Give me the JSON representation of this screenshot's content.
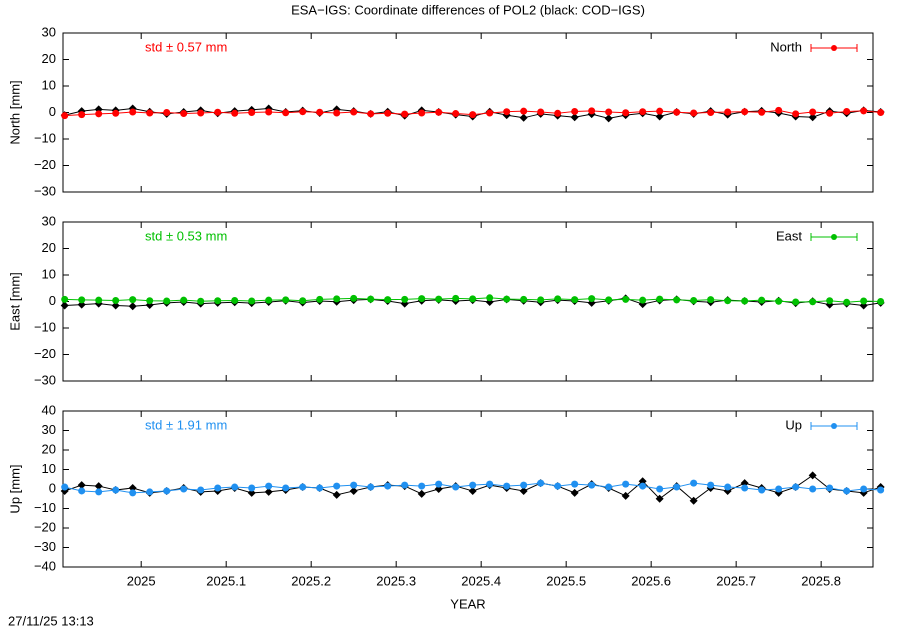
{
  "title": "ESA−IGS: Coordinate differences of POL2 (black: COD−IGS)",
  "timestamp": "27/11/25 13:13",
  "chart_data": [
    {
      "type": "line",
      "y_label": "North [mm]",
      "annotation": "std ± 0.57 mm",
      "xlim": [
        2024.908,
        2025.861
      ],
      "xticks": [
        2025,
        2025.1,
        2025.2,
        2025.3,
        2025.4,
        2025.5,
        2025.6,
        2025.7,
        2025.8
      ],
      "ylim": [
        -30,
        30
      ],
      "yticks": [
        {
          "value": -30,
          "label": "−30"
        },
        {
          "value": -20,
          "label": "−20"
        },
        {
          "value": -10,
          "label": "−10"
        },
        0,
        10,
        20,
        30
      ],
      "x": [
        2024.91,
        2024.93,
        2024.95,
        2024.97,
        2024.99,
        2025.01,
        2025.03,
        2025.05,
        2025.07,
        2025.09,
        2025.11,
        2025.13,
        2025.15,
        2025.17,
        2025.19,
        2025.21,
        2025.23,
        2025.25,
        2025.27,
        2025.29,
        2025.31,
        2025.33,
        2025.35,
        2025.37,
        2025.39,
        2025.41,
        2025.43,
        2025.45,
        2025.47,
        2025.49,
        2025.51,
        2025.53,
        2025.55,
        2025.57,
        2025.59,
        2025.61,
        2025.63,
        2025.65,
        2025.67,
        2025.69,
        2025.71,
        2025.73,
        2025.75,
        2025.77,
        2025.79,
        2025.81,
        2025.83,
        2025.85,
        2025.87
      ],
      "series": [
        {
          "color": "#000000",
          "values": [
            -1,
            0.5,
            1.2,
            0.8,
            1.5,
            0.3,
            -0.5,
            0.2,
            0.8,
            -0.3,
            0.5,
            1.0,
            1.5,
            0.2,
            0.7,
            -0.2,
            1.2,
            0.5,
            -0.5,
            0.3,
            -1.2,
            0.8,
            0.2,
            -0.8,
            -1.5,
            0.3,
            -1.0,
            -2.0,
            -0.5,
            -1.2,
            -1.8,
            -0.6,
            -2.2,
            -1.0,
            -0.3,
            -1.5,
            0.2,
            -0.5,
            0.5,
            -0.8,
            0.3,
            0.6,
            -0.2,
            -1.5,
            -1.8,
            0.5,
            -0.3,
            0.8,
            0.2
          ]
        },
        {
          "name": "North",
          "color": "#ff0000",
          "values": [
            -1.2,
            -0.8,
            -0.5,
            -0.3,
            0.2,
            -0.2,
            0.0,
            -0.4,
            -0.2,
            0.1,
            -0.3,
            0.0,
            0.2,
            -0.1,
            0.3,
            0.1,
            -0.2,
            0.2,
            -0.5,
            -0.3,
            -0.6,
            -0.2,
            0.1,
            -0.4,
            -0.8,
            -0.2,
            0.3,
            0.5,
            0.2,
            -0.3,
            0.4,
            0.6,
            0.2,
            -0.1,
            0.3,
            0.5,
            0.1,
            -0.2,
            0.0,
            0.2,
            0.3,
            0.1,
            0.8,
            -0.5,
            0.2,
            -0.3,
            0.4,
            0.6,
            0.0
          ]
        }
      ]
    },
    {
      "type": "line",
      "y_label": "East [mm]",
      "annotation": "std ± 0.53 mm",
      "xlim": [
        2024.908,
        2025.861
      ],
      "xticks": [
        2025,
        2025.1,
        2025.2,
        2025.3,
        2025.4,
        2025.5,
        2025.6,
        2025.7,
        2025.8
      ],
      "ylim": [
        -30,
        30
      ],
      "yticks": [
        {
          "value": -30,
          "label": "−30"
        },
        {
          "value": -20,
          "label": "−20"
        },
        {
          "value": -10,
          "label": "−10"
        },
        0,
        10,
        20,
        30
      ],
      "x": [
        2024.91,
        2024.93,
        2024.95,
        2024.97,
        2024.99,
        2025.01,
        2025.03,
        2025.05,
        2025.07,
        2025.09,
        2025.11,
        2025.13,
        2025.15,
        2025.17,
        2025.19,
        2025.21,
        2025.23,
        2025.25,
        2025.27,
        2025.29,
        2025.31,
        2025.33,
        2025.35,
        2025.37,
        2025.39,
        2025.41,
        2025.43,
        2025.45,
        2025.47,
        2025.49,
        2025.51,
        2025.53,
        2025.55,
        2025.57,
        2025.59,
        2025.61,
        2025.63,
        2025.65,
        2025.67,
        2025.69,
        2025.71,
        2025.73,
        2025.75,
        2025.77,
        2025.79,
        2025.81,
        2025.83,
        2025.85,
        2025.87
      ],
      "series": [
        {
          "color": "#000000",
          "values": [
            -1.5,
            -1.2,
            -0.8,
            -1.5,
            -1.8,
            -1.3,
            -0.5,
            -0.2,
            -0.8,
            -0.5,
            -0.3,
            -0.6,
            -0.2,
            0.3,
            -0.4,
            0.2,
            -0.1,
            0.5,
            0.8,
            0.2,
            -0.8,
            0.3,
            0.6,
            0.2,
            0.5,
            -0.2,
            0.8,
            0.3,
            -0.3,
            0.5,
            0.2,
            -0.5,
            0.3,
            1.2,
            -1.0,
            0.4,
            0.8,
            0.1,
            -0.3,
            0.5,
            0.2,
            -0.2,
            0.3,
            -0.6,
            0.1,
            -1.2,
            -0.8,
            -1.5,
            -0.5
          ]
        },
        {
          "name": "East",
          "color": "#00c000",
          "values": [
            0.8,
            0.6,
            0.5,
            0.4,
            0.7,
            0.3,
            0.2,
            0.5,
            0.1,
            0.3,
            0.4,
            0.2,
            0.5,
            0.6,
            0.3,
            0.8,
            1.0,
            1.2,
            0.9,
            0.7,
            0.8,
            1.1,
            0.9,
            1.2,
            1.0,
            1.4,
            0.9,
            0.8,
            0.6,
            1.0,
            0.7,
            1.1,
            0.6,
            0.8,
            0.5,
            0.9,
            0.6,
            0.4,
            0.7,
            0.3,
            0.2,
            0.5,
            0.1,
            -0.2,
            -0.1,
            0.3,
            -0.3,
            0.2,
            0.0
          ]
        }
      ]
    },
    {
      "type": "line",
      "y_label": "Up [mm]",
      "annotation": "std ± 1.91 mm",
      "x_label": "YEAR",
      "xlim": [
        2024.908,
        2025.861
      ],
      "xticks": [
        2025,
        2025.1,
        2025.2,
        2025.3,
        2025.4,
        2025.5,
        2025.6,
        2025.7,
        2025.8
      ],
      "ylim": [
        -40,
        40
      ],
      "yticks": [
        {
          "value": -40,
          "label": "−40"
        },
        {
          "value": -30,
          "label": "−30"
        },
        {
          "value": -20,
          "label": "−20"
        },
        {
          "value": -10,
          "label": "−10"
        },
        0,
        10,
        20,
        30,
        40
      ],
      "x": [
        2024.91,
        2024.93,
        2024.95,
        2024.97,
        2024.99,
        2025.01,
        2025.03,
        2025.05,
        2025.07,
        2025.09,
        2025.11,
        2025.13,
        2025.15,
        2025.17,
        2025.19,
        2025.21,
        2025.23,
        2025.25,
        2025.27,
        2025.29,
        2025.31,
        2025.33,
        2025.35,
        2025.37,
        2025.39,
        2025.41,
        2025.43,
        2025.45,
        2025.47,
        2025.49,
        2025.51,
        2025.53,
        2025.55,
        2025.57,
        2025.59,
        2025.61,
        2025.63,
        2025.65,
        2025.67,
        2025.69,
        2025.71,
        2025.73,
        2025.75,
        2025.77,
        2025.79,
        2025.81,
        2025.83,
        2025.85,
        2025.87
      ],
      "series": [
        {
          "color": "#000000",
          "values": [
            -1,
            2,
            1.5,
            -0.5,
            0.5,
            -2,
            -1,
            0.5,
            -1.5,
            -1,
            0.5,
            -2,
            -1.5,
            -0.5,
            1,
            0.5,
            -3,
            -1,
            1,
            2,
            1.5,
            -2.5,
            0,
            1.5,
            -1,
            2,
            0.5,
            -1,
            3,
            1.5,
            -2,
            2.5,
            0.5,
            -3.5,
            4,
            -5,
            1.5,
            -6,
            0.5,
            -1,
            3,
            0.5,
            -2,
            1,
            7,
            0,
            -1,
            -2,
            1
          ]
        },
        {
          "name": "Up",
          "color": "#2090f0",
          "values": [
            1,
            -1,
            -1.5,
            -0.5,
            -2,
            -1.5,
            -1,
            0,
            -0.5,
            0.5,
            1,
            0.5,
            1.5,
            0.5,
            1,
            0.5,
            1.5,
            2,
            1,
            1.5,
            2,
            1.5,
            2.5,
            1,
            2,
            2.5,
            1.5,
            2,
            3,
            1.5,
            2.5,
            2,
            1,
            2.5,
            1.5,
            0,
            1,
            3,
            2,
            1,
            0.5,
            -0.5,
            0,
            1,
            0,
            0.5,
            -1,
            0,
            -0.5
          ]
        }
      ]
    }
  ]
}
